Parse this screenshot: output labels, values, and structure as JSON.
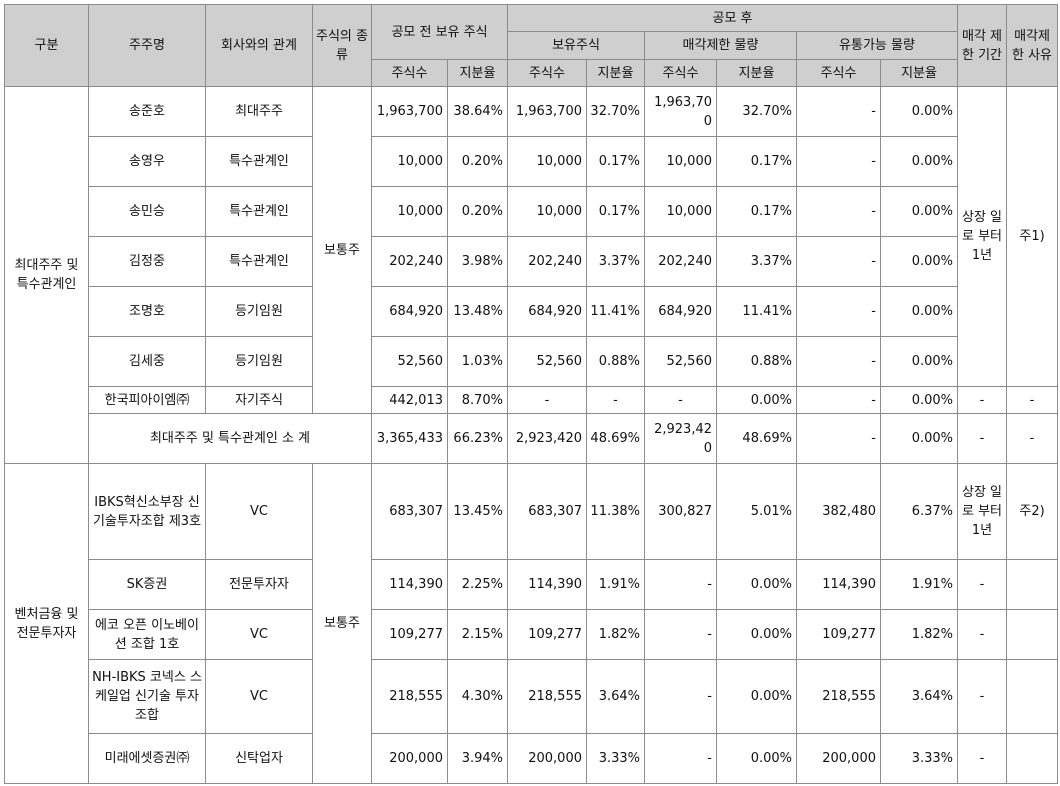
{
  "headers": {
    "category": "구분",
    "holder": "주주명",
    "relation": "회사와의 관계",
    "stock_type": "주식의 종류",
    "pre_ipo": "공모 전 보유 주식",
    "post_ipo": "공모 후",
    "held": "보유주식",
    "restricted": "매각제한 물량",
    "tradable": "유통가능 물량",
    "period": "매각 제한 기간",
    "reason": "매각제 한 사유",
    "shares": "주식수",
    "ratio": "지분율"
  },
  "groups": [
    {
      "category": "최대주주 및 특수관계인",
      "stock_type": "보통주",
      "period": "상장 일로 부터 1년",
      "reason": "주1)",
      "rows": [
        {
          "holder": "송준호",
          "relation": "최대주주",
          "pre_shares": "1,963,700",
          "pre_ratio": "38.64%",
          "held_shares": "1,963,700",
          "held_ratio": "32.70%",
          "res_shares": "1,963,700",
          "res_ratio": "32.70%",
          "trd_shares": "-",
          "trd_ratio": "0.00%"
        },
        {
          "holder": "송영우",
          "relation": "특수관계인",
          "pre_shares": "10,000",
          "pre_ratio": "0.20%",
          "held_shares": "10,000",
          "held_ratio": "0.17%",
          "res_shares": "10,000",
          "res_ratio": "0.17%",
          "trd_shares": "-",
          "trd_ratio": "0.00%"
        },
        {
          "holder": "송민승",
          "relation": "특수관계인",
          "pre_shares": "10,000",
          "pre_ratio": "0.20%",
          "held_shares": "10,000",
          "held_ratio": "0.17%",
          "res_shares": "10,000",
          "res_ratio": "0.17%",
          "trd_shares": "-",
          "trd_ratio": "0.00%"
        },
        {
          "holder": "김정중",
          "relation": "특수관계인",
          "pre_shares": "202,240",
          "pre_ratio": "3.98%",
          "held_shares": "202,240",
          "held_ratio": "3.37%",
          "res_shares": "202,240",
          "res_ratio": "3.37%",
          "trd_shares": "-",
          "trd_ratio": "0.00%"
        },
        {
          "holder": "조명호",
          "relation": "등기임원",
          "pre_shares": "684,920",
          "pre_ratio": "13.48%",
          "held_shares": "684,920",
          "held_ratio": "11.41%",
          "res_shares": "684,920",
          "res_ratio": "11.41%",
          "trd_shares": "-",
          "trd_ratio": "0.00%"
        },
        {
          "holder": "김세중",
          "relation": "등기임원",
          "pre_shares": "52,560",
          "pre_ratio": "1.03%",
          "held_shares": "52,560",
          "held_ratio": "0.88%",
          "res_shares": "52,560",
          "res_ratio": "0.88%",
          "trd_shares": "-",
          "trd_ratio": "0.00%"
        }
      ],
      "treasury": {
        "holder": "한국피아이엠㈜",
        "relation": "자기주식",
        "pre_shares": "442,013",
        "pre_ratio": "8.70%",
        "held_shares": "-",
        "held_ratio": "-",
        "res_shares": "-",
        "res_ratio": "0.00%",
        "trd_shares": "-",
        "trd_ratio": "0.00%",
        "period": "-",
        "reason": "-"
      },
      "subtotal": {
        "label": "최대주주 및 특수관계인 소 계",
        "pre_shares": "3,365,433",
        "pre_ratio": "66.23%",
        "held_shares": "2,923,420",
        "held_ratio": "48.69%",
        "res_shares": "2,923,420",
        "res_ratio": "48.69%",
        "trd_shares": "-",
        "trd_ratio": "0.00%",
        "period": "-",
        "reason": "-"
      }
    },
    {
      "category": "벤처금융 및 전문투자자",
      "stock_type": "보통주",
      "rows": [
        {
          "holder": "IBKS혁신소부장 신기술투자조합 제3호",
          "relation": "VC",
          "pre_shares": "683,307",
          "pre_ratio": "13.45%",
          "held_shares": "683,307",
          "held_ratio": "11.38%",
          "res_shares": "300,827",
          "res_ratio": "5.01%",
          "trd_shares": "382,480",
          "trd_ratio": "6.37%",
          "period": "상장 일로 부터 1년",
          "reason": "주2)"
        },
        {
          "holder": "SK증권",
          "relation": "전문투자자",
          "pre_shares": "114,390",
          "pre_ratio": "2.25%",
          "held_shares": "114,390",
          "held_ratio": "1.91%",
          "res_shares": "-",
          "res_ratio": "0.00%",
          "trd_shares": "114,390",
          "trd_ratio": "1.91%",
          "period": "-",
          "reason": ""
        },
        {
          "holder": "에코 오픈 이노베이션 조합 1호",
          "relation": "VC",
          "pre_shares": "109,277",
          "pre_ratio": "2.15%",
          "held_shares": "109,277",
          "held_ratio": "1.82%",
          "res_shares": "-",
          "res_ratio": "0.00%",
          "trd_shares": "109,277",
          "trd_ratio": "1.82%",
          "period": "-",
          "reason": ""
        },
        {
          "holder": "NH-IBKS 코넥스 스케일업 신기술 투자조합",
          "relation": "VC",
          "pre_shares": "218,555",
          "pre_ratio": "4.30%",
          "held_shares": "218,555",
          "held_ratio": "3.64%",
          "res_shares": "-",
          "res_ratio": "0.00%",
          "trd_shares": "218,555",
          "trd_ratio": "3.64%",
          "period": "-",
          "reason": ""
        },
        {
          "holder": "미래에셋증권㈜",
          "relation": "신탁업자",
          "pre_shares": "200,000",
          "pre_ratio": "3.94%",
          "held_shares": "200,000",
          "held_ratio": "3.33%",
          "res_shares": "-",
          "res_ratio": "0.00%",
          "trd_shares": "200,000",
          "trd_ratio": "3.33%",
          "period": "-",
          "reason": ""
        }
      ]
    }
  ]
}
